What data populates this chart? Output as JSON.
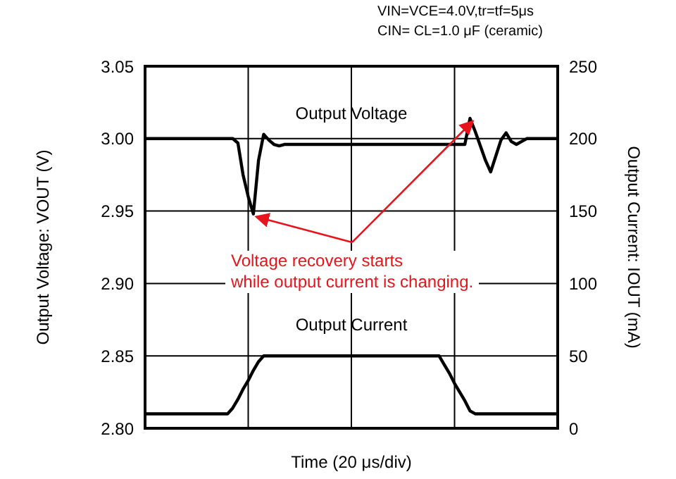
{
  "chart_data": {
    "type": "line",
    "xlabel": "Time (20 μs/div)",
    "ylabel": "Output Voltage: VOUT (V)",
    "y2label": "Output Current: IOUT (mA)",
    "categories": [
      null,
      null,
      null,
      null,
      null,
      null,
      null,
      null,
      null,
      null,
      null,
      null,
      null,
      null,
      null,
      null,
      null,
      null,
      null,
      null,
      null,
      null,
      null,
      null,
      null,
      null,
      null,
      null,
      null,
      null,
      null,
      null,
      null,
      null,
      null,
      null,
      null,
      null,
      null,
      null,
      null,
      null,
      null,
      null,
      null,
      null,
      null,
      null,
      null,
      null,
      null,
      null,
      null,
      null,
      null,
      null,
      null,
      null,
      null,
      null,
      null,
      null,
      null,
      null,
      null,
      null,
      null,
      null,
      null,
      null,
      null,
      null,
      null,
      null,
      null,
      null,
      null,
      null,
      null,
      null,
      null
    ],
    "ylim": [
      2.8,
      3.05
    ],
    "yticks": [
      {
        "value": 2.8,
        "label": "2.80"
      },
      2.85,
      {
        "value": 2.9,
        "label": "2.90"
      },
      2.95,
      {
        "value": 3,
        "label": "3.00"
      },
      3.05
    ],
    "y2lim": [
      0,
      250
    ],
    "y2ticks": [
      0,
      50,
      100,
      150,
      200,
      250
    ],
    "grid": true,
    "marker": "none",
    "legend": false,
    "series": [
      {
        "name": "Output Voltage",
        "color": "#000000",
        "values": [
          3.0,
          3.0,
          3.0,
          3.0,
          3.0,
          3.0,
          3.0,
          3.0,
          3.0,
          3.0,
          3.0,
          3.0,
          3.0,
          3.0,
          3.0,
          3.0,
          3.0,
          3.0,
          2.997,
          2.975,
          2.96,
          2.948,
          2.985,
          3.003,
          2.999,
          2.996,
          2.995,
          2.996,
          2.996,
          2.996,
          2.996,
          2.996,
          2.996,
          2.996,
          2.996,
          2.996,
          2.996,
          2.996,
          2.996,
          2.996,
          2.996,
          2.996,
          2.996,
          2.996,
          2.996,
          2.996,
          2.996,
          2.996,
          2.996,
          2.996,
          2.996,
          2.996,
          2.996,
          2.996,
          2.996,
          2.996,
          2.996,
          2.996,
          2.996,
          2.996,
          2.996,
          2.996,
          2.996,
          3.014,
          3.005,
          2.995,
          2.985,
          2.977,
          2.988,
          2.999,
          3.004,
          2.998,
          2.996,
          2.998,
          3.0,
          3.0,
          3.0,
          3.0,
          3.0,
          3.0,
          3.0
        ]
      },
      {
        "name": "Output Current",
        "color": "#000000",
        "axis": "y2",
        "values": [
          10,
          10,
          10,
          10,
          10,
          10,
          10,
          10,
          10,
          10,
          10,
          10,
          10,
          10,
          10,
          10,
          10,
          14,
          20,
          27,
          33,
          40,
          46,
          50,
          50,
          50,
          50,
          50,
          50,
          50,
          50,
          50,
          50,
          50,
          50,
          50,
          50,
          50,
          50,
          50,
          50,
          50,
          50,
          50,
          50,
          50,
          50,
          50,
          50,
          50,
          50,
          50,
          50,
          50,
          50,
          50,
          50,
          50,
          44,
          38,
          31,
          25,
          19,
          12,
          10,
          10,
          10,
          10,
          10,
          10,
          10,
          10,
          10,
          10,
          10,
          10,
          10,
          10,
          10,
          10,
          10
        ]
      }
    ],
    "annotations": [
      "VIN=VCE=4.0V,tr=tf=5μs",
      "CIN= CL=1.0 μF (ceramic)",
      "Voltage recovery starts\nwhile output current is changing."
    ]
  }
}
